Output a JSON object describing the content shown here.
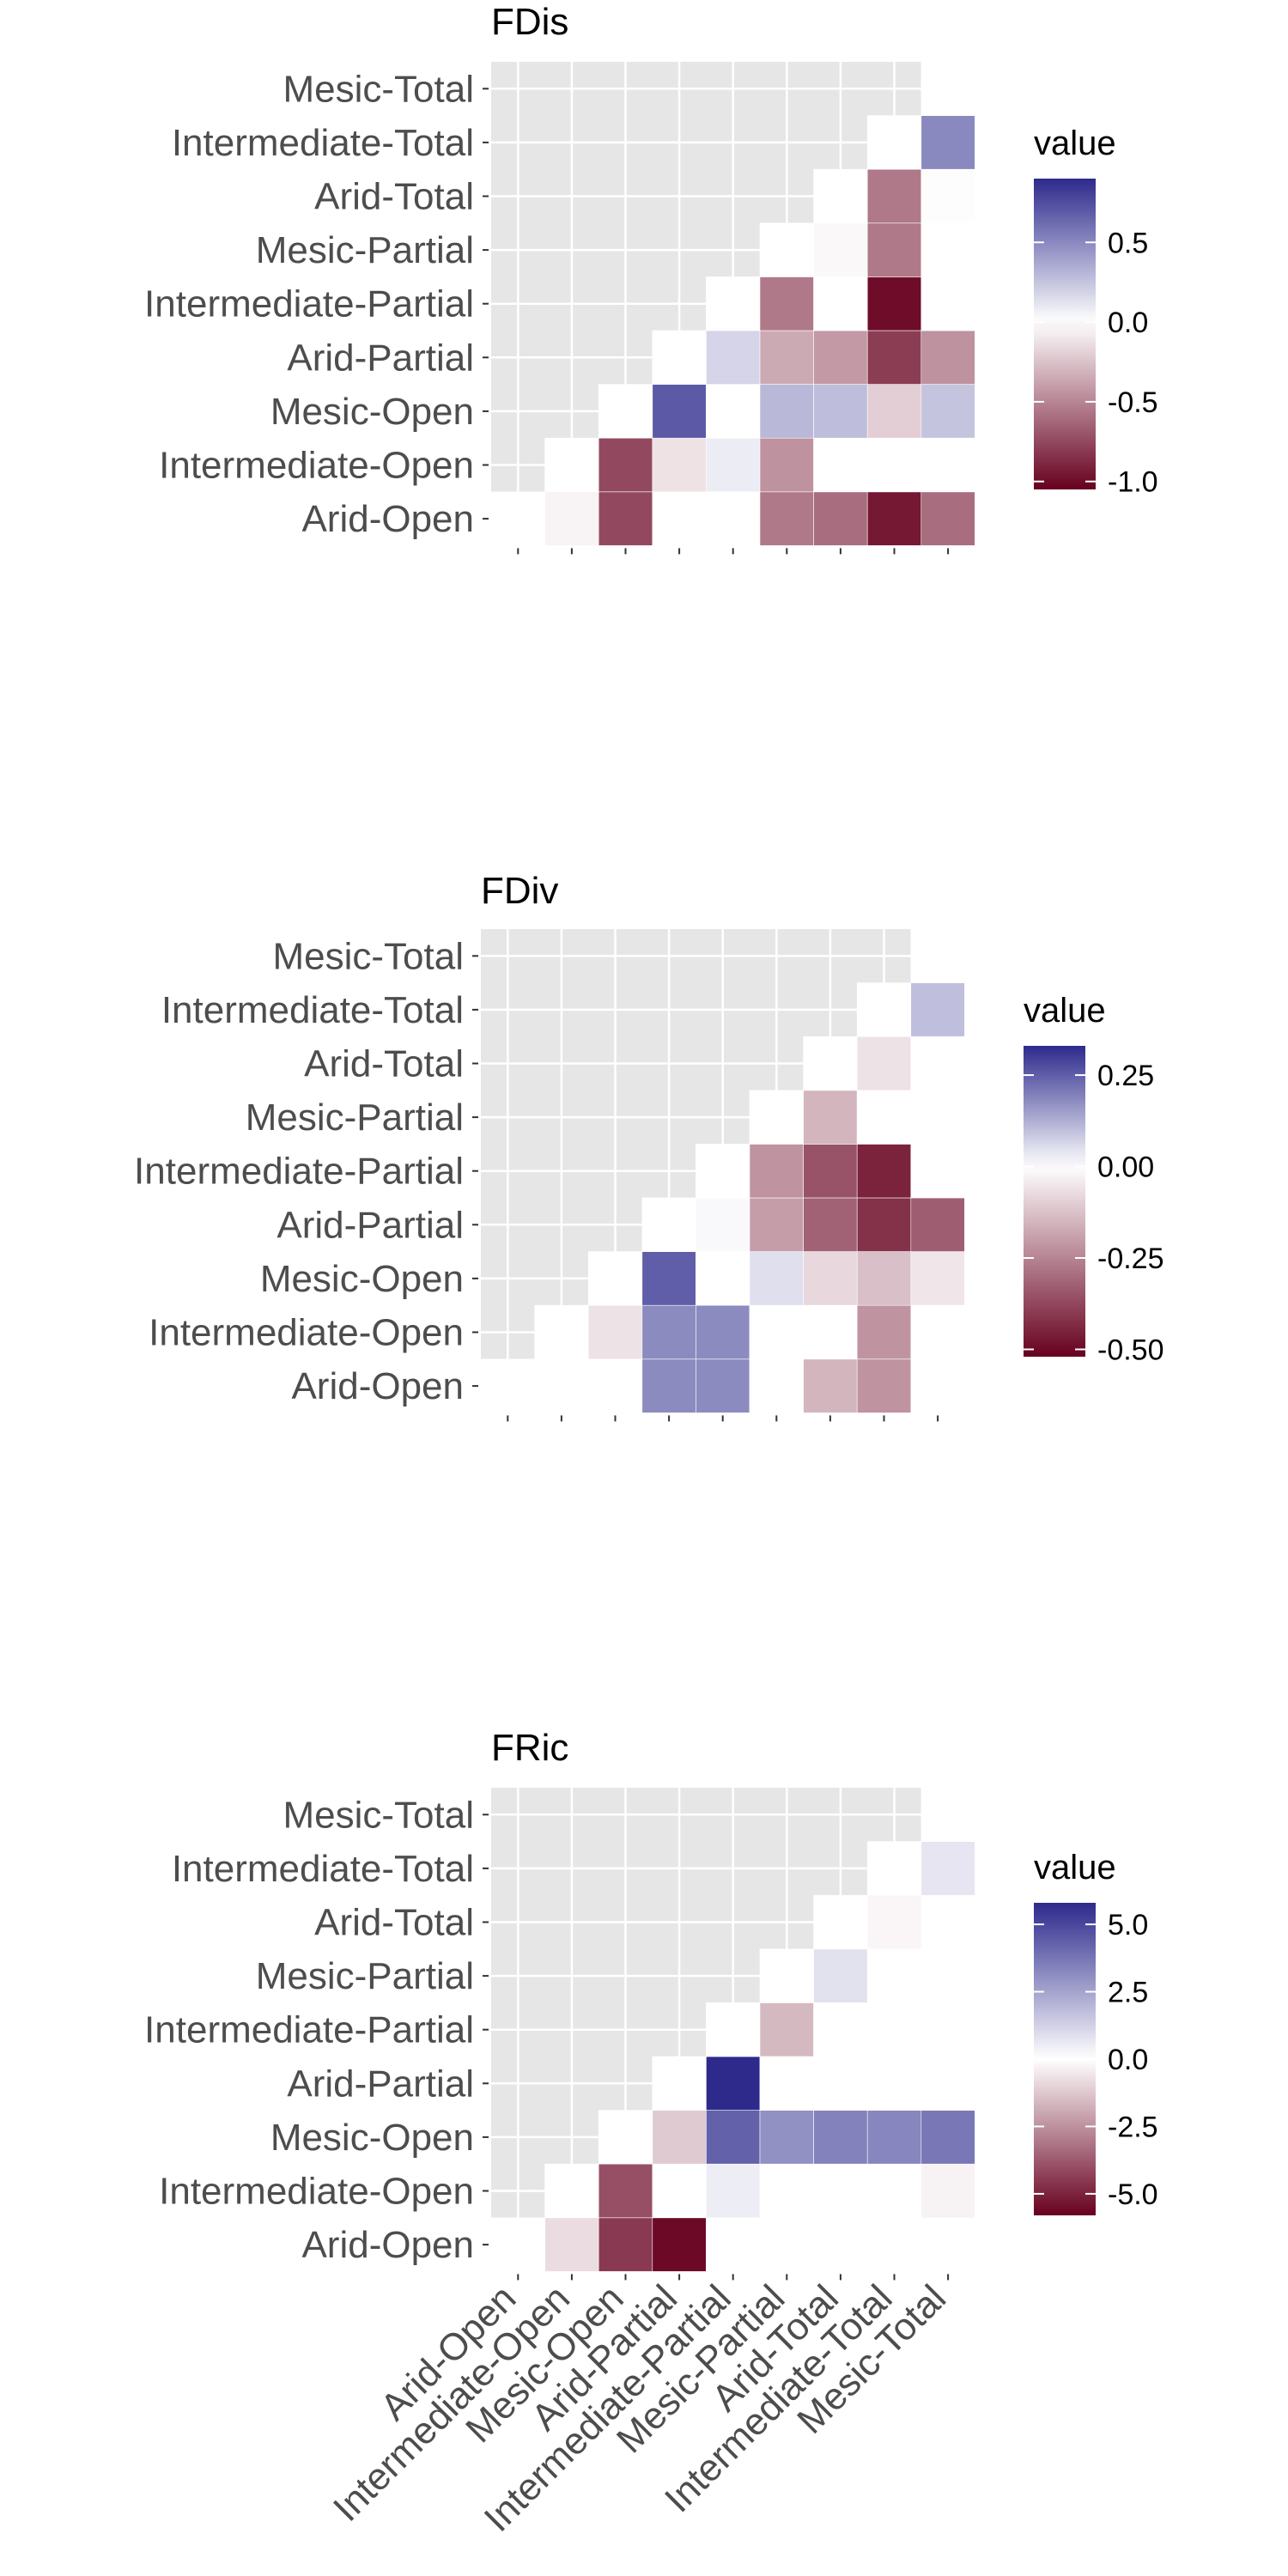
{
  "colors": {
    "low": "#67001f",
    "mid": "#ffffff",
    "high": "#2d2a8c",
    "panel": "#e6e6e6",
    "grid": "#ffffff",
    "axis_text": "#4d4d4d",
    "title": "#000000"
  },
  "chart_data": [
    {
      "type": "heatmap",
      "title": "FDis",
      "legend_title": "value",
      "legend_ticks": [
        -1.0,
        -0.5,
        0.0,
        0.5
      ],
      "legend_tick_labels": [
        "-1.0",
        "-0.5",
        "0.0",
        "0.5"
      ],
      "limits": [
        -1.05,
        0.9
      ],
      "x_categories": [
        "Arid-Open",
        "Intermediate-Open",
        "Mesic-Open",
        "Arid-Partial",
        "Intermediate-Partial",
        "Mesic-Partial",
        "Arid-Total",
        "Intermediate-Total",
        "Mesic-Total"
      ],
      "y_categories": [
        "Arid-Open",
        "Intermediate-Open",
        "Mesic-Open",
        "Arid-Partial",
        "Intermediate-Partial",
        "Mesic-Partial",
        "Arid-Total",
        "Intermediate-Total",
        "Mesic-Total"
      ],
      "show_x_tick_labels": false,
      "values": [
        [
          0.0,
          -0.05,
          -0.75,
          0.0,
          0.0,
          -0.55,
          -0.6,
          -0.95,
          -0.6
        ],
        [
          null,
          0.0,
          -0.75,
          -0.12,
          0.08,
          -0.45,
          0.0,
          0.0,
          0.0
        ],
        [
          null,
          null,
          0.0,
          0.7,
          0.0,
          0.3,
          0.28,
          -0.2,
          0.25
        ],
        [
          null,
          null,
          null,
          0.0,
          0.18,
          -0.35,
          -0.42,
          -0.8,
          -0.45
        ],
        [
          null,
          null,
          null,
          null,
          0.0,
          -0.55,
          0.0,
          -1.0,
          0.0
        ],
        [
          null,
          null,
          null,
          null,
          null,
          0.0,
          -0.03,
          -0.55,
          0.0
        ],
        [
          null,
          null,
          null,
          null,
          null,
          null,
          0.0,
          -0.55,
          -0.01
        ],
        [
          null,
          null,
          null,
          null,
          null,
          null,
          null,
          0.0,
          0.5
        ],
        [
          null,
          null,
          null,
          null,
          null,
          null,
          null,
          null,
          0.0
        ]
      ]
    },
    {
      "type": "heatmap",
      "title": "FDiv",
      "legend_title": "value",
      "legend_ticks": [
        -0.5,
        -0.25,
        0.0,
        0.25
      ],
      "legend_tick_labels": [
        "-0.50",
        "-0.25",
        "0.00",
        "0.25"
      ],
      "limits": [
        -0.52,
        0.33
      ],
      "x_categories": [
        "Arid-Open",
        "Intermediate-Open",
        "Mesic-Open",
        "Arid-Partial",
        "Intermediate-Partial",
        "Mesic-Partial",
        "Arid-Total",
        "Intermediate-Total",
        "Mesic-Total"
      ],
      "y_categories": [
        "Arid-Open",
        "Intermediate-Open",
        "Mesic-Open",
        "Arid-Partial",
        "Intermediate-Partial",
        "Mesic-Partial",
        "Arid-Total",
        "Intermediate-Total",
        "Mesic-Total"
      ],
      "show_x_tick_labels": false,
      "values": [
        [
          0.0,
          0.0,
          0.0,
          0.18,
          0.18,
          0.0,
          -0.15,
          -0.22,
          0.0
        ],
        [
          null,
          0.0,
          -0.06,
          0.18,
          0.18,
          0.0,
          0.0,
          -0.22,
          0.0
        ],
        [
          null,
          null,
          0.0,
          0.25,
          0.0,
          0.05,
          -0.08,
          -0.13,
          -0.05
        ],
        [
          null,
          null,
          null,
          0.0,
          0.01,
          -0.2,
          -0.32,
          -0.42,
          -0.33
        ],
        [
          null,
          null,
          null,
          null,
          0.0,
          -0.22,
          -0.35,
          -0.45,
          0.0
        ],
        [
          null,
          null,
          null,
          null,
          null,
          0.0,
          -0.15,
          0.0,
          0.0
        ],
        [
          null,
          null,
          null,
          null,
          null,
          null,
          0.0,
          -0.06,
          0.0
        ],
        [
          null,
          null,
          null,
          null,
          null,
          null,
          null,
          0.0,
          0.1
        ],
        [
          null,
          null,
          null,
          null,
          null,
          null,
          null,
          null,
          0.0
        ]
      ]
    },
    {
      "type": "heatmap",
      "title": "FRic",
      "legend_title": "value",
      "legend_ticks": [
        -5.0,
        -2.5,
        0.0,
        2.5,
        5.0
      ],
      "legend_tick_labels": [
        "-5.0",
        "-2.5",
        "0.0",
        "2.5",
        "5.0"
      ],
      "limits": [
        -5.8,
        5.8
      ],
      "x_categories": [
        "Arid-Open",
        "Intermediate-Open",
        "Mesic-Open",
        "Arid-Partial",
        "Intermediate-Partial",
        "Mesic-Partial",
        "Arid-Total",
        "Intermediate-Total",
        "Mesic-Total"
      ],
      "y_categories": [
        "Arid-Open",
        "Intermediate-Open",
        "Mesic-Open",
        "Arid-Partial",
        "Intermediate-Partial",
        "Mesic-Partial",
        "Arid-Total",
        "Intermediate-Total",
        "Mesic-Total"
      ],
      "show_x_tick_labels": true,
      "values": [
        [
          0.0,
          -0.8,
          -4.5,
          -5.6,
          0.0,
          0.0,
          0.0,
          0.0,
          0.0
        ],
        [
          null,
          0.0,
          -4.0,
          0.0,
          0.5,
          0.0,
          0.0,
          0.0,
          -0.3
        ],
        [
          null,
          null,
          0.0,
          -1.2,
          4.3,
          3.0,
          3.4,
          3.3,
          3.7
        ],
        [
          null,
          null,
          null,
          0.0,
          5.8,
          0.0,
          0.0,
          0.0,
          0.0
        ],
        [
          null,
          null,
          null,
          null,
          0.0,
          -1.6,
          0.0,
          0.0,
          0.0
        ],
        [
          null,
          null,
          null,
          null,
          null,
          0.0,
          0.8,
          0.0,
          0.0
        ],
        [
          null,
          null,
          null,
          null,
          null,
          null,
          0.0,
          -0.2,
          0.0
        ],
        [
          null,
          null,
          null,
          null,
          null,
          null,
          null,
          0.0,
          0.7
        ],
        [
          null,
          null,
          null,
          null,
          null,
          null,
          null,
          null,
          0.0
        ]
      ]
    }
  ]
}
